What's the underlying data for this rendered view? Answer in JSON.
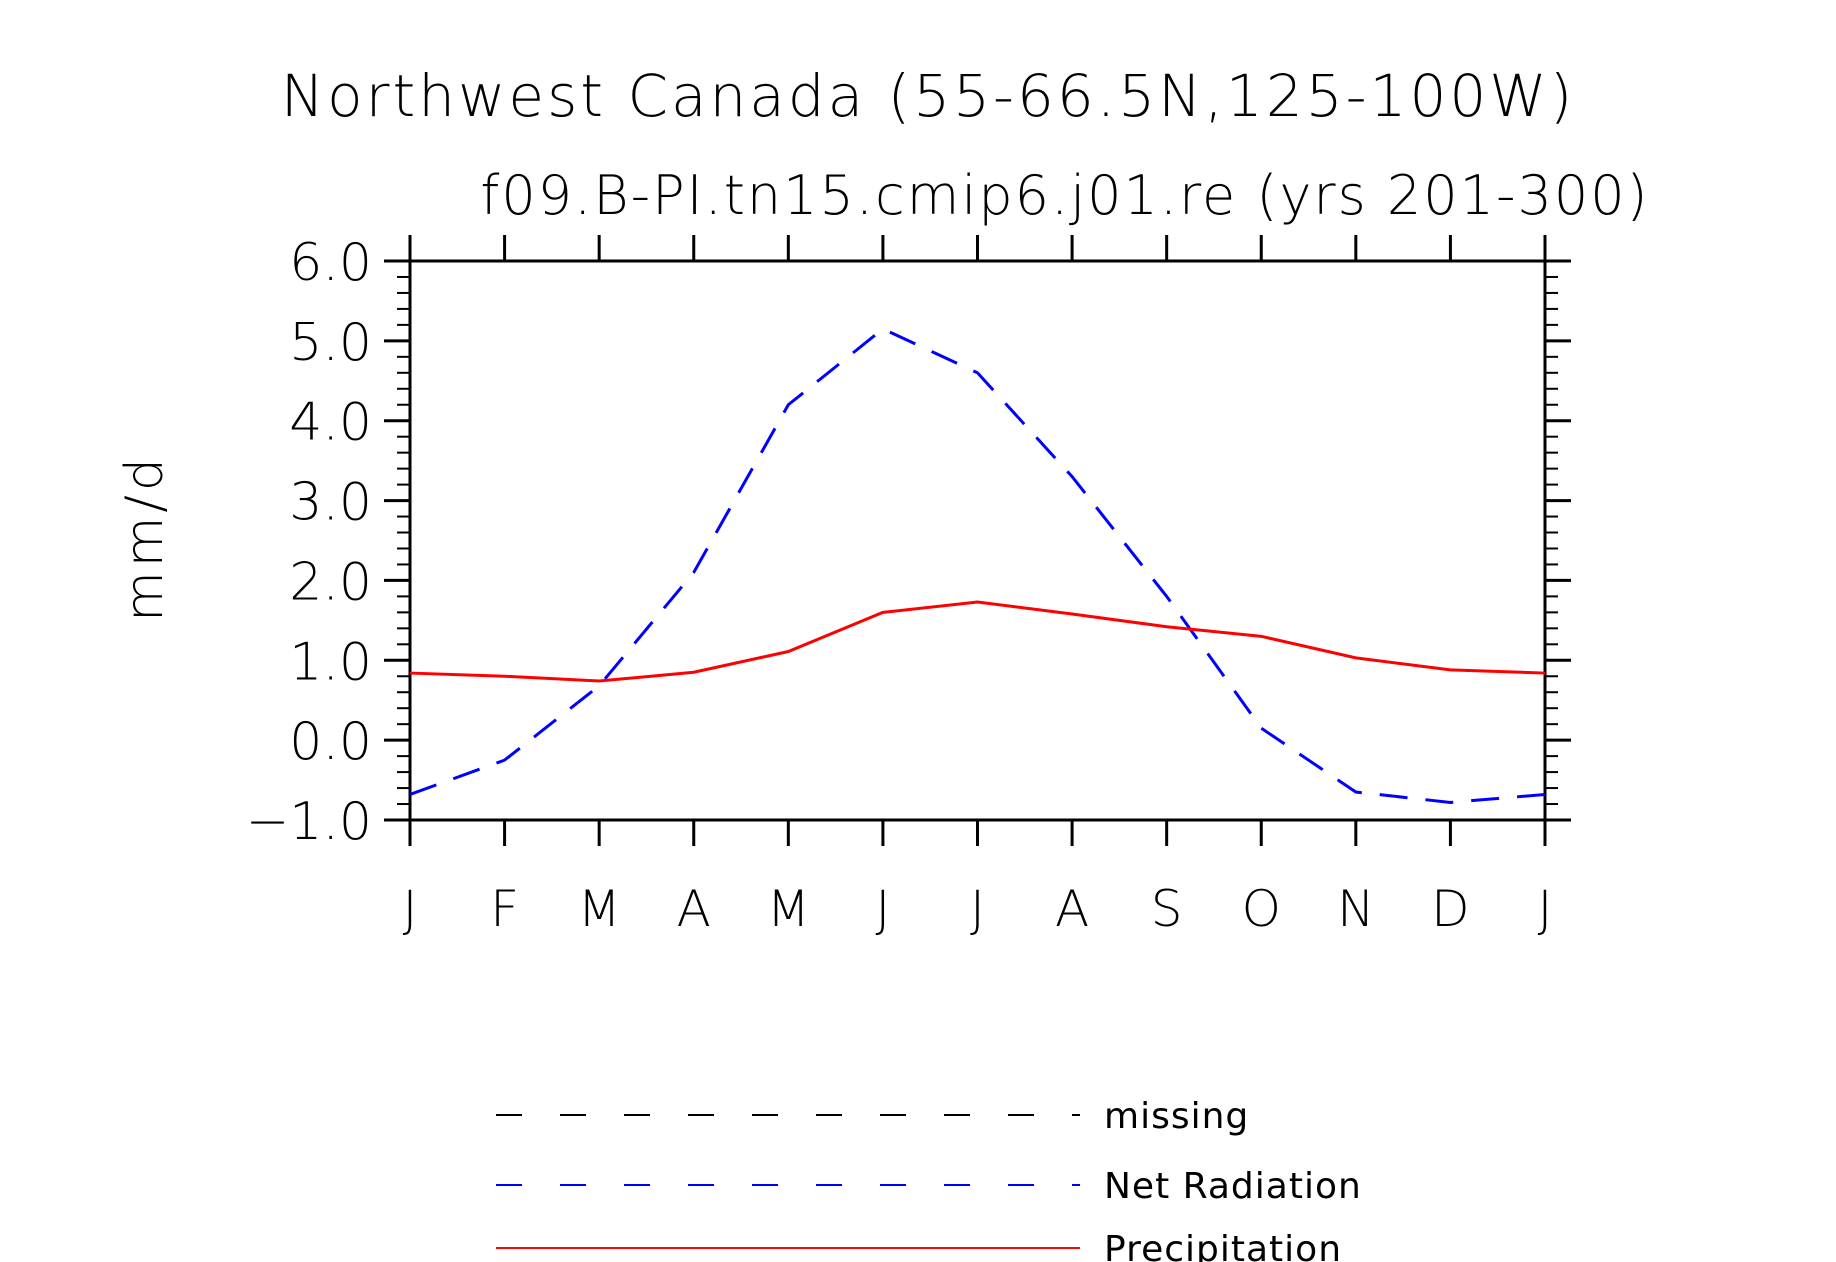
{
  "chart_data": {
    "type": "line",
    "title": "Northwest Canada (55-66.5N,125-100W)",
    "subtitle": "f09.B-PI.tn15.cmip6.j01.re (yrs 201-300)",
    "xlabel": "",
    "ylabel": "mm/d",
    "categories": [
      "J",
      "F",
      "M",
      "A",
      "M",
      "J",
      "J",
      "A",
      "S",
      "O",
      "N",
      "D",
      "J"
    ],
    "ylim": [
      -1.0,
      6.0
    ],
    "yticks": [
      "6.0",
      "5.0",
      "4.0",
      "3.0",
      "2.0",
      "1.0",
      "0.0",
      "-1.0"
    ],
    "series": [
      {
        "name": "Net Radiation",
        "color": "#0000ff",
        "style": "dashed",
        "values": [
          -0.68,
          -0.25,
          0.68,
          2.1,
          4.2,
          5.15,
          4.6,
          3.3,
          1.8,
          0.15,
          -0.65,
          -0.78,
          -0.68
        ]
      },
      {
        "name": "Precipitation",
        "color": "#ff0000",
        "style": "solid",
        "values": [
          0.84,
          0.8,
          0.74,
          0.85,
          1.11,
          1.6,
          1.73,
          1.58,
          1.42,
          1.3,
          1.03,
          0.88,
          0.84
        ]
      }
    ],
    "legend": [
      {
        "label": "missing",
        "color": "#000000",
        "style": "dashed"
      },
      {
        "label": "Net Radiation",
        "color": "#0000ff",
        "style": "dashed"
      },
      {
        "label": "Precipitation",
        "color": "#ff0000",
        "style": "solid"
      }
    ],
    "legend_position": "bottom",
    "grid": false
  }
}
